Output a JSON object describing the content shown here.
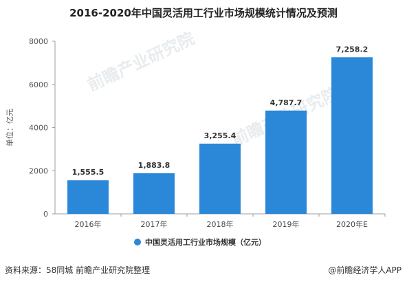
{
  "title": "2016-2020年中国灵活用工行业市场规模统计情况及预测",
  "watermark": "前瞻产业研究院",
  "footer": {
    "source": "资料来源：58同城 前瞻产业研究院整理",
    "brand": "@前瞻经济学人APP"
  },
  "colors": {
    "bar": "#2b87d8",
    "axis": "#9e9e9e",
    "grid": "#e6e6e6"
  },
  "chart_data": {
    "type": "bar",
    "categories": [
      "2016年",
      "2017年",
      "2018年",
      "2019年",
      "2020年E"
    ],
    "series": [
      {
        "name": "中国灵活用工行业市场规模（亿元）",
        "values": [
          1555.5,
          1883.8,
          3255.4,
          4787.7,
          7258.2
        ]
      }
    ],
    "data_labels": [
      "1,555.5",
      "1,883.8",
      "3,255.4",
      "4,787.7",
      "7,258.2"
    ],
    "ylabel": "单位：亿元",
    "ylim": [
      0,
      8000
    ],
    "yticks": [
      0,
      2000,
      4000,
      6000,
      8000
    ],
    "grid": false,
    "legend": "bottom-center"
  }
}
